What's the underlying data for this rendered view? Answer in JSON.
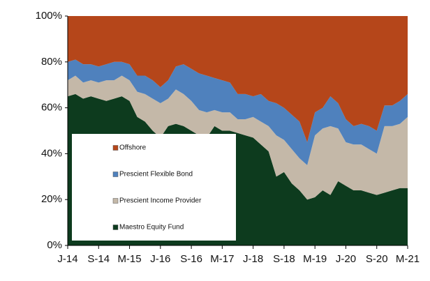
{
  "chart_data": {
    "type": "stacked_area",
    "categories": [
      "J-14",
      null,
      null,
      null,
      "S-14",
      null,
      null,
      null,
      "M-15",
      null,
      null,
      null,
      "J-16",
      null,
      null,
      null,
      "S-16",
      null,
      null,
      null,
      "M-17",
      null,
      null,
      null,
      "J-18",
      null,
      null,
      null,
      "S-18",
      null,
      null,
      null,
      "M-19",
      null,
      null,
      null,
      "J-20",
      null,
      null,
      null,
      "S-20",
      null,
      null,
      null,
      "M-21"
    ],
    "series": [
      {
        "name": "Maestro Equity Fund",
        "color": "#0d3b1e",
        "values": [
          65,
          66,
          64,
          65,
          64,
          63,
          64,
          65,
          63,
          56,
          54,
          50,
          47,
          52,
          53,
          52,
          50,
          48,
          47,
          52,
          50,
          50,
          49,
          48,
          47,
          44,
          41,
          30,
          32,
          27,
          24,
          20,
          21,
          24,
          22,
          28,
          26,
          24,
          24,
          23,
          22,
          23,
          24,
          25,
          25
        ]
      },
      {
        "name": "Prescient Income Provider",
        "color": "#c4b8a8",
        "values": [
          7,
          8,
          7,
          7,
          7,
          9,
          8,
          9,
          9,
          11,
          12,
          14,
          15,
          12,
          15,
          14,
          13,
          11,
          11,
          7,
          8,
          8,
          6,
          7,
          9,
          10,
          11,
          18,
          14,
          15,
          14,
          15,
          27,
          27,
          30,
          23,
          19,
          20,
          20,
          19,
          18,
          29,
          28,
          28,
          31
        ]
      },
      {
        "name": "Prescient Flexible Bond",
        "color": "#4f81bd",
        "values": [
          8,
          7,
          8,
          7,
          7,
          7,
          8,
          6,
          7,
          7,
          8,
          8,
          7,
          8,
          10,
          13,
          14,
          16,
          16,
          14,
          14,
          13,
          11,
          11,
          9,
          12,
          11,
          14,
          14,
          15,
          16,
          10,
          10,
          9,
          13,
          11,
          10,
          8,
          9,
          10,
          10,
          9,
          9,
          10,
          10
        ]
      },
      {
        "name": "Offshore",
        "color": "#b5461a",
        "values": [
          20,
          19,
          21,
          21,
          22,
          21,
          20,
          20,
          21,
          26,
          26,
          28,
          31,
          28,
          22,
          21,
          23,
          25,
          26,
          27,
          28,
          29,
          34,
          34,
          35,
          34,
          37,
          38,
          40,
          43,
          46,
          55,
          42,
          40,
          35,
          38,
          45,
          48,
          47,
          48,
          50,
          39,
          39,
          37,
          34
        ]
      }
    ],
    "ylim": [
      0,
      100
    ],
    "yticks": [
      {
        "value": 0,
        "label": "0%"
      },
      {
        "value": 20,
        "label": "20%"
      },
      {
        "value": 40,
        "label": "40%"
      },
      {
        "value": 60,
        "label": "60%"
      },
      {
        "value": 80,
        "label": "80%"
      },
      {
        "value": 100,
        "label": "100%"
      }
    ]
  }
}
